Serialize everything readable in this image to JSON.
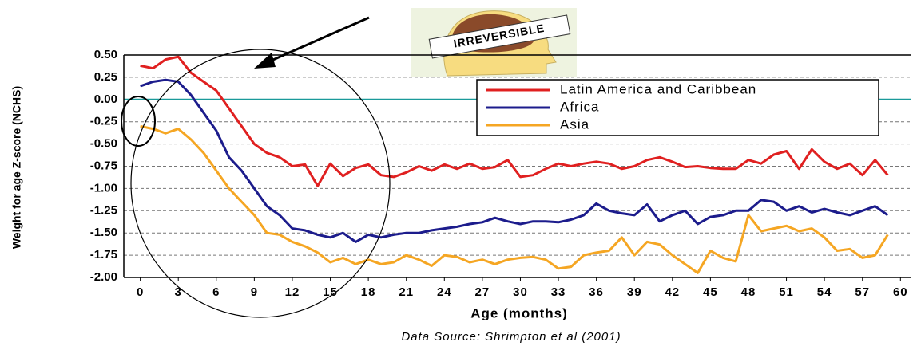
{
  "chart_data": {
    "type": "line",
    "annotations": [
      "IRREVERSIBLE"
    ],
    "xlabel": "Age (months)",
    "ylabel": "Weight for age Z-score (NCHS)",
    "source": "Data Source: Shrimpton  et al (2001)",
    "x": [
      0,
      1,
      2,
      3,
      4,
      5,
      6,
      7,
      8,
      9,
      10,
      11,
      12,
      13,
      14,
      15,
      16,
      17,
      18,
      19,
      20,
      21,
      22,
      23,
      24,
      25,
      26,
      27,
      28,
      29,
      30,
      31,
      32,
      33,
      34,
      35,
      36,
      37,
      38,
      39,
      40,
      41,
      42,
      43,
      44,
      45,
      46,
      47,
      48,
      49,
      50,
      51,
      52,
      53,
      54,
      55,
      56,
      57,
      58,
      59
    ],
    "series": [
      {
        "name": "Latin America and Caribbean",
        "color": "#e02020",
        "values": [
          0.38,
          0.35,
          0.45,
          0.48,
          0.3,
          0.2,
          0.1,
          -0.1,
          -0.3,
          -0.5,
          -0.6,
          -0.65,
          -0.75,
          -0.73,
          -0.97,
          -0.72,
          -0.86,
          -0.77,
          -0.73,
          -0.85,
          -0.87,
          -0.82,
          -0.75,
          -0.8,
          -0.73,
          -0.78,
          -0.72,
          -0.78,
          -0.76,
          -0.68,
          -0.87,
          -0.85,
          -0.78,
          -0.72,
          -0.75,
          -0.72,
          -0.7,
          -0.72,
          -0.78,
          -0.75,
          -0.68,
          -0.65,
          -0.7,
          -0.76,
          -0.75,
          -0.77,
          -0.78,
          -0.78,
          -0.68,
          -0.72,
          -0.62,
          -0.58,
          -0.78,
          -0.56,
          -0.7,
          -0.78,
          -0.72,
          -0.85,
          -0.68,
          -0.85
        ]
      },
      {
        "name": "Africa",
        "color": "#1c1c8c",
        "values": [
          0.15,
          0.2,
          0.22,
          0.2,
          0.05,
          -0.15,
          -0.35,
          -0.65,
          -0.8,
          -1.0,
          -1.2,
          -1.3,
          -1.45,
          -1.47,
          -1.52,
          -1.55,
          -1.5,
          -1.6,
          -1.52,
          -1.55,
          -1.52,
          -1.5,
          -1.5,
          -1.47,
          -1.45,
          -1.43,
          -1.4,
          -1.38,
          -1.33,
          -1.37,
          -1.4,
          -1.37,
          -1.37,
          -1.38,
          -1.35,
          -1.3,
          -1.17,
          -1.25,
          -1.28,
          -1.3,
          -1.18,
          -1.37,
          -1.3,
          -1.25,
          -1.4,
          -1.32,
          -1.3,
          -1.25,
          -1.25,
          -1.13,
          -1.15,
          -1.25,
          -1.2,
          -1.27,
          -1.23,
          -1.27,
          -1.3,
          -1.25,
          -1.2,
          -1.3
        ]
      },
      {
        "name": "Asia",
        "color": "#f5a623",
        "values": [
          -0.3,
          -0.33,
          -0.38,
          -0.33,
          -0.45,
          -0.6,
          -0.8,
          -1.0,
          -1.15,
          -1.3,
          -1.5,
          -1.52,
          -1.6,
          -1.65,
          -1.72,
          -1.83,
          -1.78,
          -1.85,
          -1.8,
          -1.85,
          -1.83,
          -1.75,
          -1.8,
          -1.87,
          -1.75,
          -1.77,
          -1.83,
          -1.8,
          -1.85,
          -1.8,
          -1.78,
          -1.77,
          -1.8,
          -1.9,
          -1.88,
          -1.75,
          -1.72,
          -1.7,
          -1.55,
          -1.75,
          -1.6,
          -1.63,
          -1.75,
          -1.85,
          -1.95,
          -1.7,
          -1.78,
          -1.82,
          -1.3,
          -1.48,
          -1.45,
          -1.42,
          -1.48,
          -1.45,
          -1.55,
          -1.7,
          -1.68,
          -1.78,
          -1.75,
          -1.52
        ]
      }
    ],
    "xlim": [
      -1.3,
      60.8
    ],
    "xticks": [
      0,
      3,
      6,
      9,
      12,
      15,
      18,
      21,
      24,
      27,
      30,
      33,
      36,
      39,
      42,
      45,
      48,
      51,
      54,
      57,
      60
    ],
    "ylim": [
      -2,
      0.5
    ],
    "yticks": [
      {
        "value": -2,
        "label": "-2.00"
      },
      {
        "value": -1.75,
        "label": "-1.75"
      },
      {
        "value": -1.5,
        "label": "-1.50"
      },
      {
        "value": -1.25,
        "label": "-1.25"
      },
      {
        "value": -1,
        "label": "-1.00"
      },
      {
        "value": -0.75,
        "label": "-0.75"
      },
      {
        "value": -0.5,
        "label": "-0.50"
      },
      {
        "value": -0.25,
        "label": "-0.25"
      },
      {
        "value": 0,
        "label": "0.00"
      },
      {
        "value": 0.25,
        "label": "0.25"
      },
      {
        "value": 0.5,
        "label": "0.50"
      }
    ],
    "grid": true,
    "zero_line_color": "#1a9a9a",
    "legend": "upper right"
  }
}
